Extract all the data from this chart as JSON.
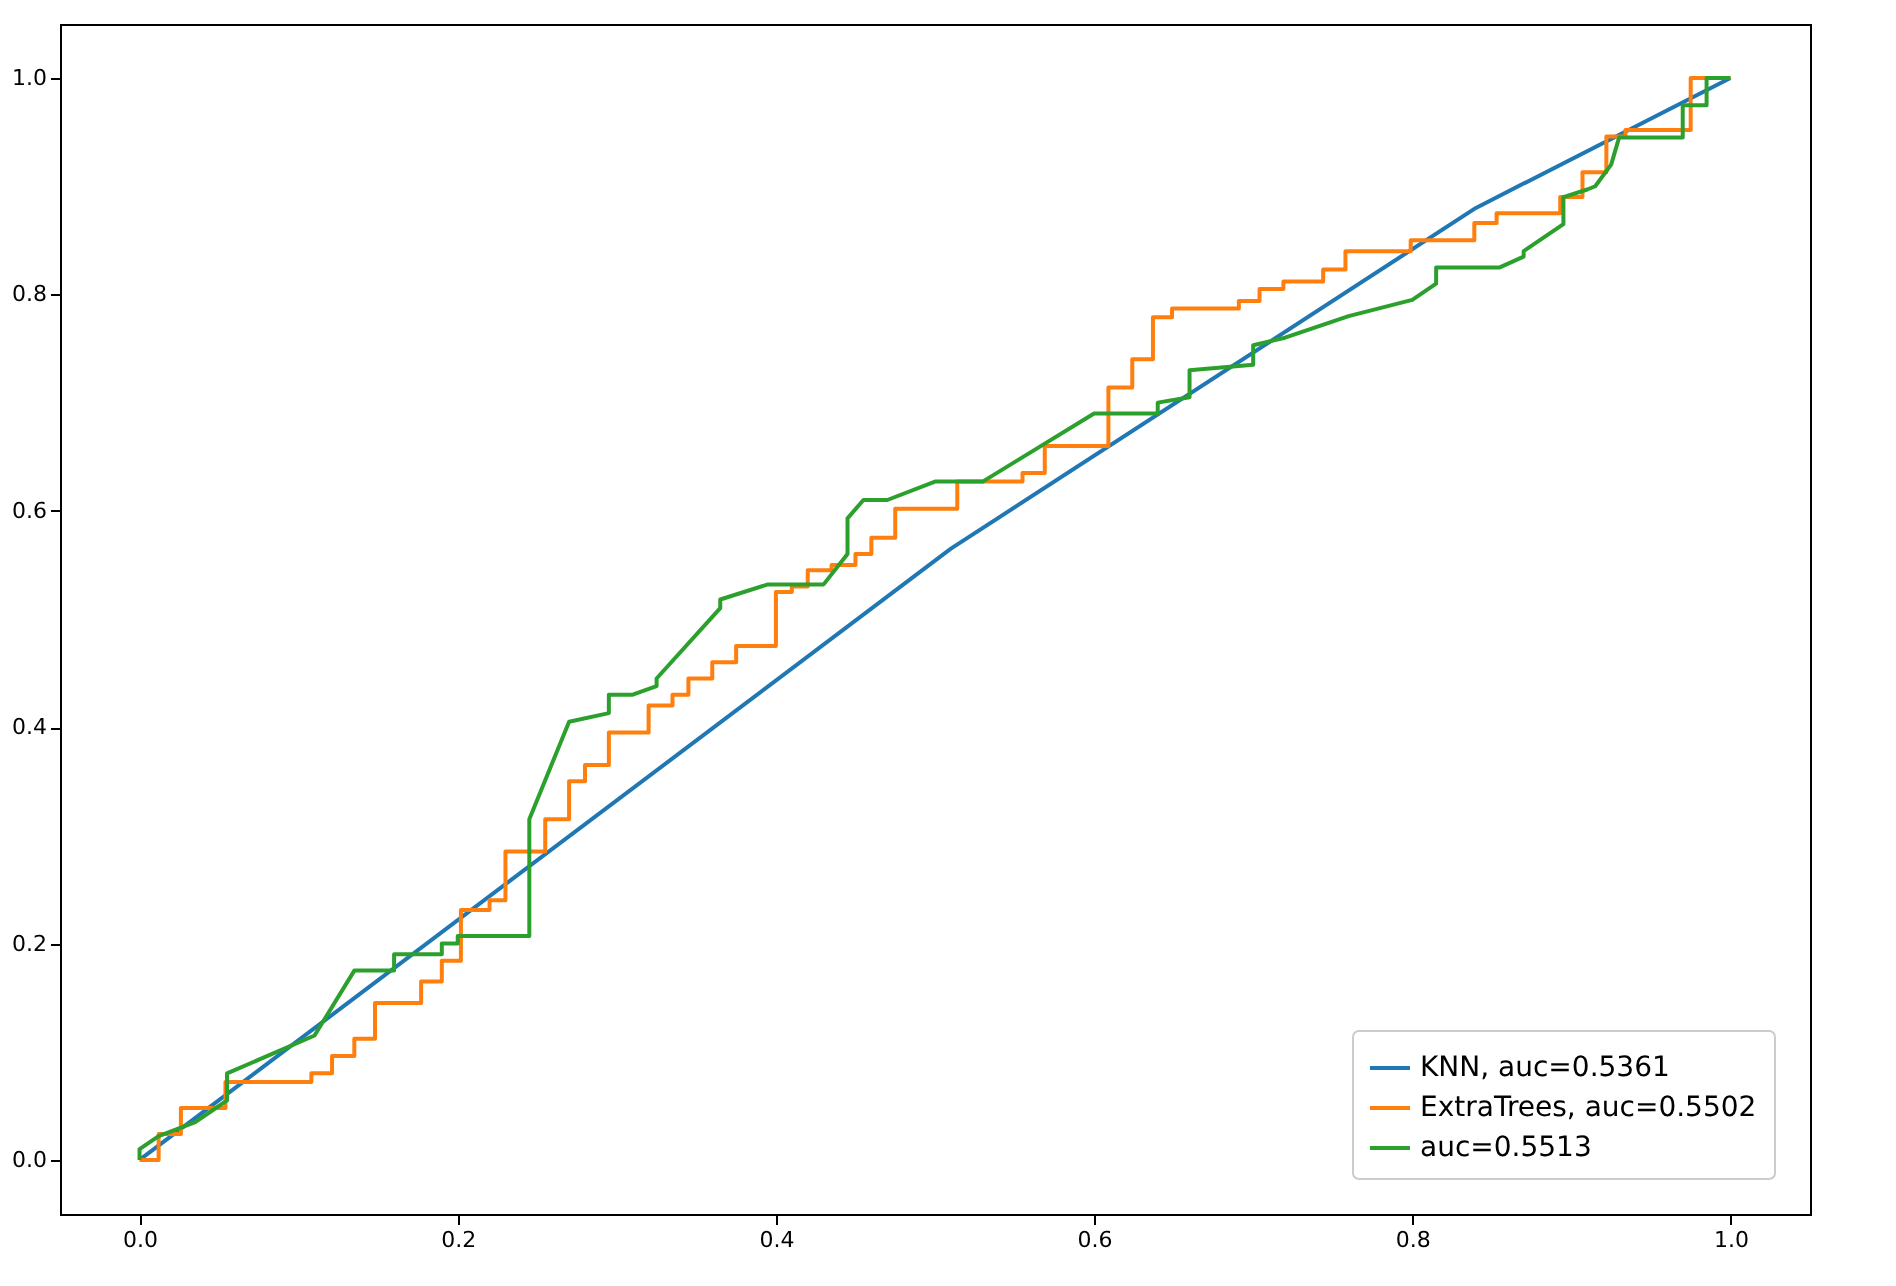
{
  "chart_data": {
    "type": "line",
    "xlim": [
      -0.05,
      1.05
    ],
    "ylim": [
      -0.05,
      1.05
    ],
    "xticks": [
      {
        "value": 0,
        "label": "0.0"
      },
      {
        "value": 0.2,
        "label": "0.2"
      },
      {
        "value": 0.4,
        "label": "0.4"
      },
      {
        "value": 0.6,
        "label": "0.6"
      },
      {
        "value": 0.8,
        "label": "0.8"
      },
      {
        "value": 1,
        "label": "1.0"
      }
    ],
    "yticks": [
      {
        "value": 0,
        "label": "0.0"
      },
      {
        "value": 0.2,
        "label": "0.2"
      },
      {
        "value": 0.4,
        "label": "0.4"
      },
      {
        "value": 0.6,
        "label": "0.6"
      },
      {
        "value": 0.8,
        "label": "0.8"
      },
      {
        "value": 1,
        "label": "1.0"
      }
    ],
    "grid": false,
    "legend": "bottom right",
    "marker": "none",
    "line_style": "solid",
    "series": [
      {
        "name": "KNN, auc=0.5361",
        "color": "#1f77b4",
        "x": [
          0,
          0.51,
          0.84,
          1
        ],
        "values": [
          0,
          0.565,
          0.88,
          1
        ]
      },
      {
        "name": "ExtraTrees, auc=0.5502",
        "color": "#ff7f0e",
        "x": [
          0,
          0.012,
          0.012,
          0.026,
          0.026,
          0.054,
          0.054,
          0.108,
          0.108,
          0.121,
          0.121,
          0.135,
          0.135,
          0.148,
          0.148,
          0.177,
          0.177,
          0.19,
          0.19,
          0.202,
          0.202,
          0.22,
          0.22,
          0.23,
          0.23,
          0.255,
          0.255,
          0.27,
          0.27,
          0.28,
          0.28,
          0.295,
          0.295,
          0.32,
          0.32,
          0.335,
          0.335,
          0.345,
          0.345,
          0.36,
          0.36,
          0.375,
          0.375,
          0.4,
          0.4,
          0.41,
          0.41,
          0.42,
          0.42,
          0.435,
          0.435,
          0.45,
          0.45,
          0.46,
          0.46,
          0.475,
          0.475,
          0.514,
          0.514,
          0.555,
          0.555,
          0.569,
          0.569,
          0.609,
          0.609,
          0.624,
          0.624,
          0.637,
          0.637,
          0.649,
          0.649,
          0.691,
          0.691,
          0.704,
          0.704,
          0.719,
          0.719,
          0.744,
          0.744,
          0.758,
          0.758,
          0.799,
          0.799,
          0.839,
          0.839,
          0.853,
          0.853,
          0.893,
          0.893,
          0.907,
          0.907,
          0.922,
          0.922,
          0.934,
          0.934,
          0.975,
          0.975,
          1
        ],
        "values": [
          0,
          0,
          0.024,
          0.024,
          0.048,
          0.048,
          0.072,
          0.072,
          0.08,
          0.08,
          0.096,
          0.096,
          0.112,
          0.112,
          0.145,
          0.145,
          0.165,
          0.165,
          0.184,
          0.184,
          0.231,
          0.231,
          0.24,
          0.24,
          0.285,
          0.285,
          0.315,
          0.315,
          0.35,
          0.35,
          0.365,
          0.365,
          0.395,
          0.395,
          0.42,
          0.42,
          0.43,
          0.43,
          0.445,
          0.445,
          0.46,
          0.46,
          0.475,
          0.475,
          0.525,
          0.525,
          0.53,
          0.53,
          0.545,
          0.545,
          0.55,
          0.55,
          0.56,
          0.56,
          0.575,
          0.575,
          0.602,
          0.602,
          0.627,
          0.627,
          0.635,
          0.635,
          0.66,
          0.66,
          0.714,
          0.714,
          0.74,
          0.74,
          0.779,
          0.779,
          0.787,
          0.787,
          0.794,
          0.794,
          0.805,
          0.805,
          0.812,
          0.812,
          0.823,
          0.823,
          0.84,
          0.84,
          0.85,
          0.85,
          0.866,
          0.866,
          0.875,
          0.875,
          0.89,
          0.89,
          0.913,
          0.913,
          0.946,
          0.946,
          0.952,
          0.952,
          1,
          1
        ]
      },
      {
        "name": "auc=0.5513",
        "color": "#2ca02c",
        "x": [
          0,
          0,
          0.012,
          0.035,
          0.045,
          0.055,
          0.055,
          0.11,
          0.135,
          0.16,
          0.16,
          0.19,
          0.19,
          0.2,
          0.2,
          0.245,
          0.245,
          0.27,
          0.295,
          0.295,
          0.31,
          0.325,
          0.325,
          0.365,
          0.365,
          0.395,
          0.43,
          0.445,
          0.445,
          0.455,
          0.47,
          0.5,
          0.53,
          0.6,
          0.64,
          0.64,
          0.66,
          0.66,
          0.7,
          0.7,
          0.72,
          0.76,
          0.8,
          0.815,
          0.815,
          0.855,
          0.87,
          0.87,
          0.895,
          0.895,
          0.91,
          0.915,
          0.925,
          0.93,
          0.97,
          0.97,
          0.985,
          0.985,
          1
        ],
        "values": [
          0,
          0.01,
          0.022,
          0.035,
          0.045,
          0.055,
          0.08,
          0.115,
          0.175,
          0.175,
          0.19,
          0.19,
          0.2,
          0.2,
          0.207,
          0.207,
          0.315,
          0.405,
          0.413,
          0.43,
          0.43,
          0.438,
          0.445,
          0.51,
          0.518,
          0.532,
          0.532,
          0.56,
          0.593,
          0.61,
          0.61,
          0.627,
          0.627,
          0.69,
          0.69,
          0.7,
          0.705,
          0.73,
          0.735,
          0.753,
          0.76,
          0.78,
          0.795,
          0.81,
          0.825,
          0.825,
          0.835,
          0.84,
          0.865,
          0.89,
          0.897,
          0.9,
          0.92,
          0.945,
          0.945,
          0.975,
          0.975,
          1,
          1
        ]
      }
    ]
  }
}
